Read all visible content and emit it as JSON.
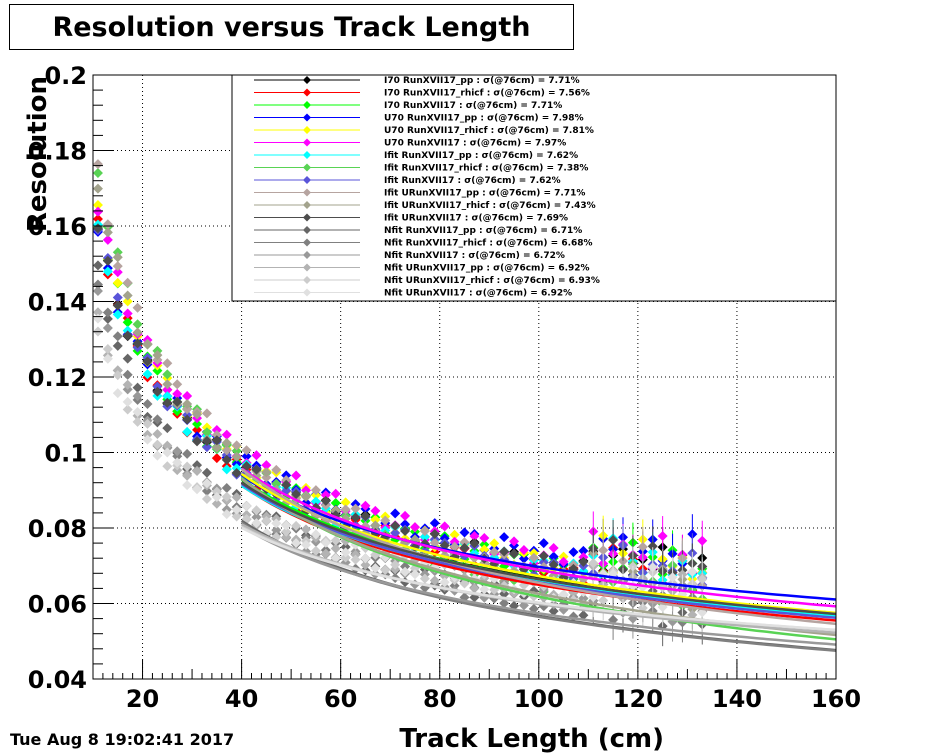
{
  "chart_data": {
    "type": "scatter",
    "title": "Resolution versus Track Length",
    "xlabel": "Track Length (cm)",
    "ylabel": "Resolution",
    "xlim": [
      10,
      160
    ],
    "ylim": [
      0.04,
      0.2
    ],
    "x_ticks": [
      20,
      40,
      60,
      80,
      100,
      120,
      140,
      160
    ],
    "y_ticks": [
      0.04,
      0.06,
      0.08,
      0.1,
      0.12,
      0.14,
      0.16,
      0.18,
      0.2
    ],
    "x_tick_labels": [
      "20",
      "40",
      "60",
      "80",
      "100",
      "120",
      "140",
      "160"
    ],
    "y_tick_labels": [
      "0.04",
      "0.06",
      "0.08",
      "0.1",
      "0.12",
      "0.14",
      "0.16",
      "0.18",
      "0.2"
    ],
    "grid": true,
    "legend_position": "top-right",
    "x_points": [
      11,
      13,
      15,
      17,
      19,
      21,
      23,
      25,
      27,
      29,
      31,
      33,
      35,
      37,
      39,
      41,
      43,
      45,
      47,
      49,
      51,
      53,
      55,
      57,
      59,
      61,
      63,
      65,
      67,
      69,
      71,
      73,
      75,
      77,
      79,
      81,
      83,
      85,
      87,
      89,
      91,
      93,
      95,
      97,
      99,
      101,
      103,
      105,
      107,
      109,
      111,
      113,
      115,
      117,
      119,
      121,
      123,
      125,
      127,
      129,
      131,
      133
    ],
    "series": [
      {
        "name": "I70  RunXVII17_pp : σ(@76cm) =  7.71%",
        "color": "#000000",
        "r76": 0.0771,
        "y0": 0.159
      },
      {
        "name": "I70  RunXVII17_rhicf : σ(@76cm) =  7.56%",
        "color": "#ff0000",
        "r76": 0.0756,
        "y0": 0.16
      },
      {
        "name": "I70  RunXVII17 : σ(@76cm) =  7.71%",
        "color": "#00ff00",
        "r76": 0.0771,
        "y0": 0.162
      },
      {
        "name": "U70  RunXVII17_pp : σ(@76cm) =  7.98%",
        "color": "#0000ff",
        "r76": 0.0798,
        "y0": 0.157
      },
      {
        "name": "U70  RunXVII17_rhicf : σ(@76cm) =  7.81%",
        "color": "#ffff00",
        "r76": 0.0781,
        "y0": 0.165
      },
      {
        "name": "U70  RunXVII17 : σ(@76cm) =  7.97%",
        "color": "#ff00ff",
        "r76": 0.0797,
        "y0": 0.166
      },
      {
        "name": "Ifit RunXVII17_pp : σ(@76cm) =  7.62%",
        "color": "#00ffff",
        "r76": 0.0762,
        "y0": 0.158
      },
      {
        "name": "Ifit RunXVII17_rhicf : σ(@76cm) =  7.38%",
        "color": "#59d354",
        "r76": 0.0738,
        "y0": 0.175
      },
      {
        "name": "Ifit RunXVII17 : σ(@76cm) =  7.62%",
        "color": "#5954d9",
        "r76": 0.0762,
        "y0": 0.16
      },
      {
        "name": "Ifit URunXVII17_pp : σ(@76cm) =  7.71%",
        "color": "#b6a4a0",
        "r76": 0.0771,
        "y0": 0.174
      },
      {
        "name": "Ifit URunXVII17_rhicf : σ(@76cm) =  7.43%",
        "color": "#a3a38d",
        "r76": 0.0743,
        "y0": 0.172
      },
      {
        "name": "Ifit URunXVII17 : σ(@76cm) =  7.69%",
        "color": "#4d4d4d",
        "r76": 0.0769,
        "y0": 0.159
      },
      {
        "name": "Nfit RunXVII17_pp : σ(@76cm) =  6.71%",
        "color": "#666666",
        "r76": 0.0671,
        "y0": 0.148
      },
      {
        "name": "Nfit RunXVII17_rhicf : σ(@76cm) =  6.68%",
        "color": "#808080",
        "r76": 0.0668,
        "y0": 0.147
      },
      {
        "name": "Nfit RunXVII17 : σ(@76cm) =  6.72%",
        "color": "#999999",
        "r76": 0.0672,
        "y0": 0.141
      },
      {
        "name": "Nfit URunXVII17_pp : σ(@76cm) =  6.92%",
        "color": "#b3b3b3",
        "r76": 0.0692,
        "y0": 0.137
      },
      {
        "name": "Nfit URunXVII17_rhicf : σ(@76cm) =  6.93%",
        "color": "#cccccc",
        "r76": 0.0693,
        "y0": 0.134
      },
      {
        "name": "Nfit URunXVII17 : σ(@76cm) =  6.92%",
        "color": "#e0e0e0",
        "r76": 0.0692,
        "y0": 0.133
      }
    ]
  },
  "footer": {
    "date": "Tue Aug  8 19:02:41 2017"
  }
}
